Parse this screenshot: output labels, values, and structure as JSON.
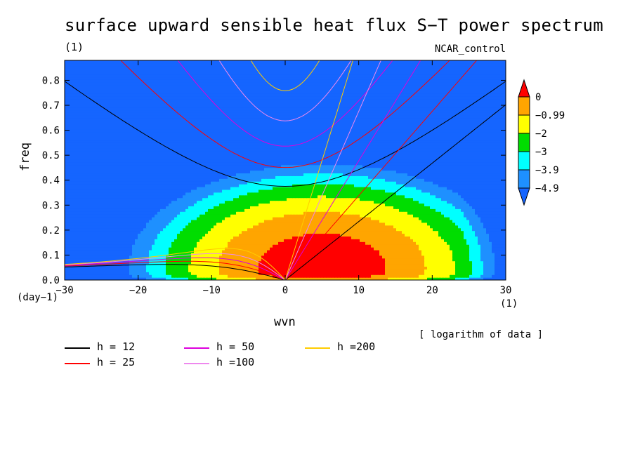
{
  "header": {
    "title": "surface upward sensible heat flux S−T power spectrum",
    "units": "(1)",
    "run_name": "NCAR_control"
  },
  "colorbar": {
    "levels": [
      "0",
      "−0.99",
      "−2",
      "−3",
      "−3.9",
      "−4.9"
    ],
    "colors": [
      "#ff0000",
      "#ffa500",
      "#ffff00",
      "#00dd00",
      "#00ffff",
      "#1e90ff",
      "#1565ff"
    ]
  },
  "footer": {
    "note": "[ logarithm of data ]"
  },
  "chart_data": {
    "type": "heatmap",
    "title": "surface upward sensible heat flux S−T power spectrum",
    "xlabel": "wvn",
    "ylabel": "freq",
    "x_unit": "(1)",
    "y_unit": "(day−1)",
    "xlim": [
      -30,
      30
    ],
    "ylim": [
      0,
      0.88
    ],
    "x_ticks": [
      -30,
      -20,
      -10,
      0,
      10,
      20,
      30
    ],
    "x_tick_labels": [
      "−30",
      "−20",
      "−10",
      "0",
      "10",
      "20",
      "30"
    ],
    "y_ticks": [
      0.0,
      0.1,
      0.2,
      0.3,
      0.4,
      0.5,
      0.6,
      0.7,
      0.8
    ],
    "y_tick_labels": [
      "0.0",
      "0.1",
      "0.2",
      "0.3",
      "0.4",
      "0.5",
      "0.6",
      "0.7",
      "0.8"
    ],
    "field_description": "log10 power; maximum near wvn 5, freq 0.05 (> 0)",
    "contour_levels": [
      0,
      -0.99,
      -2,
      -3,
      -3.9,
      -4.9
    ],
    "dispersion_curves": [
      {
        "name": "h = 12",
        "h": 12,
        "color": "#000000"
      },
      {
        "name": "h = 25",
        "h": 25,
        "color": "#ff0000"
      },
      {
        "name": "h = 50",
        "h": 50,
        "color": "#dd00dd"
      },
      {
        "name": "h =100",
        "h": 100,
        "color": "#ee88ee"
      },
      {
        "name": "h =200",
        "h": 200,
        "color": "#ffcc00"
      }
    ]
  }
}
